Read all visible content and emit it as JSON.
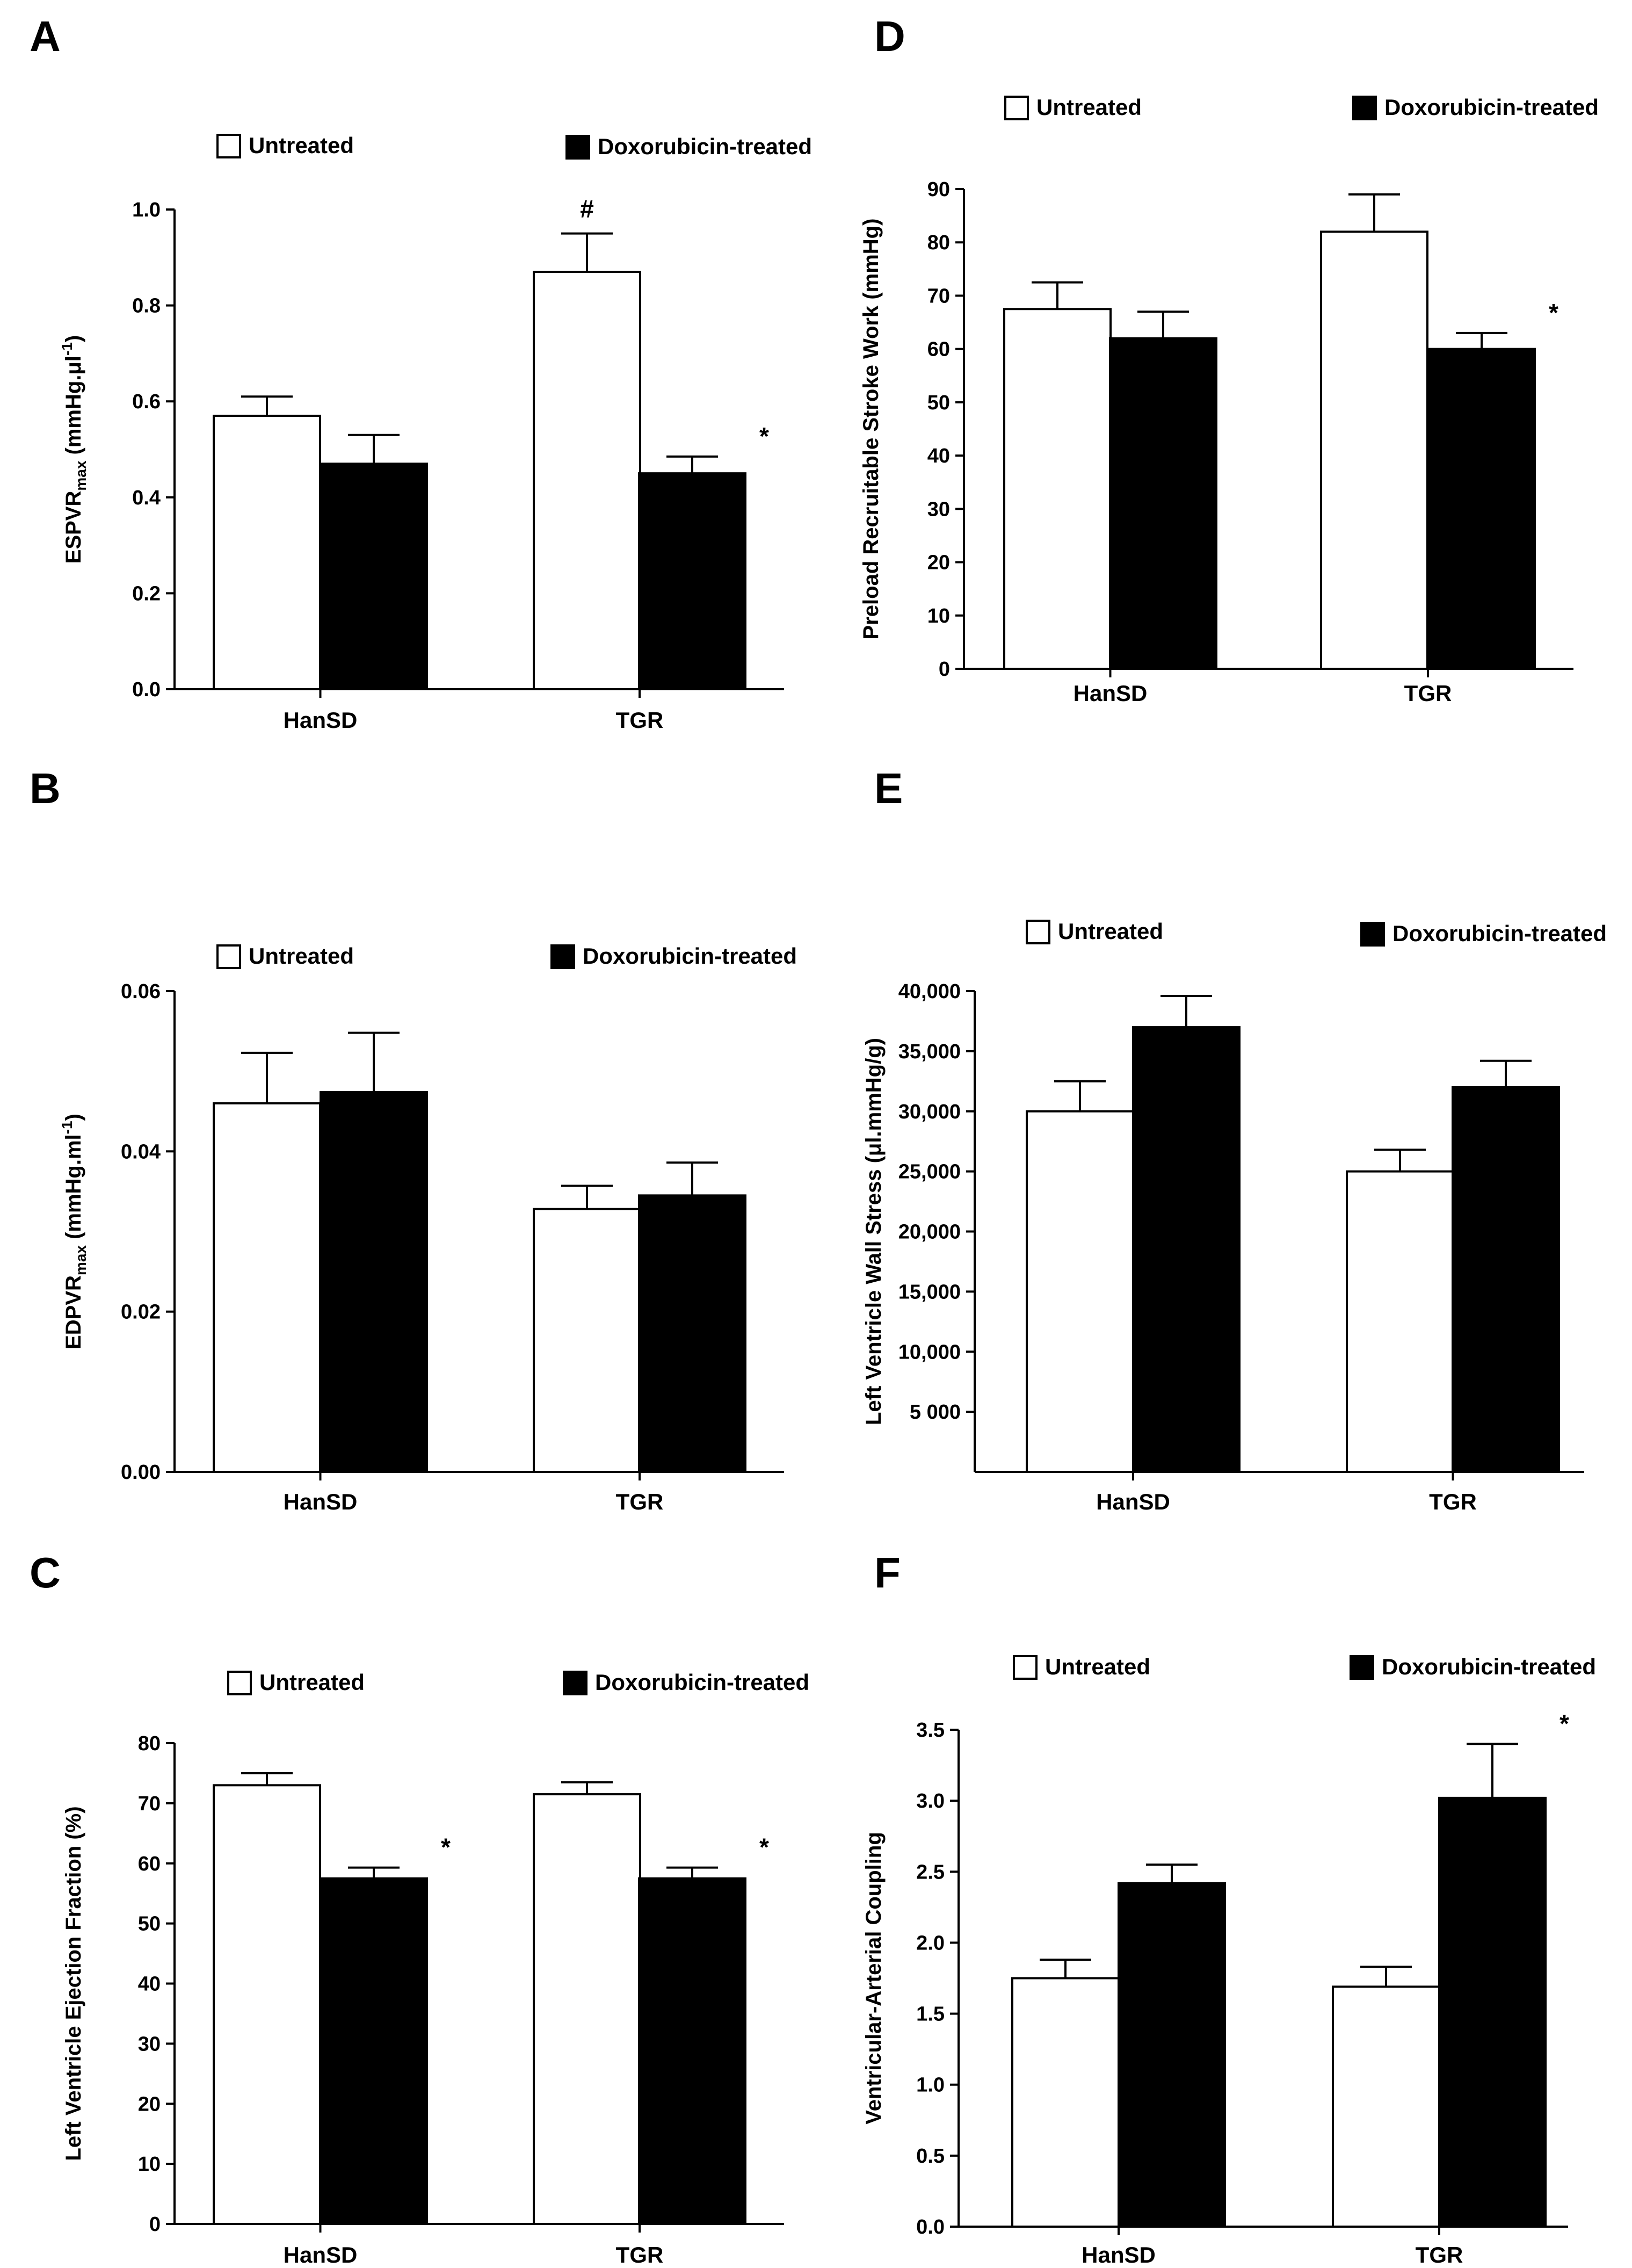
{
  "legend": {
    "untreated": "Untreated",
    "treated": "Doxorubicin-treated"
  },
  "colors": {
    "untreated": "#ffffff",
    "treated": "#000000",
    "stroke": "#000000"
  },
  "chart_data": [
    {
      "panel": "A",
      "type": "bar",
      "ylabel": "ESPVR",
      "ylabel_sub": "max",
      "ylabel_unit": " (mmHg.μl",
      "ylabel_sup": "-1",
      "ylabel_close": ")",
      "categories": [
        "HanSD",
        "TGR"
      ],
      "ylim": [
        0,
        1.0
      ],
      "yticks": [
        0.0,
        0.2,
        0.4,
        0.6,
        0.8,
        1.0
      ],
      "ytick_labels": [
        "0.0",
        "0.2",
        "0.4",
        "0.6",
        "0.8",
        "1.0"
      ],
      "series": [
        {
          "name": "Untreated",
          "values": [
            0.57,
            0.87
          ],
          "errors": [
            0.04,
            0.08
          ],
          "marks": [
            "",
            "#"
          ]
        },
        {
          "name": "Doxorubicin-treated",
          "values": [
            0.47,
            0.45
          ],
          "errors": [
            0.06,
            0.035
          ],
          "marks": [
            "",
            "*"
          ]
        }
      ]
    },
    {
      "panel": "B",
      "type": "bar",
      "ylabel": "EDPVR",
      "ylabel_sub": "max",
      "ylabel_unit": " (mmHg.ml",
      "ylabel_sup": "-1",
      "ylabel_close": ")",
      "categories": [
        "HanSD",
        "TGR"
      ],
      "ylim": [
        0,
        0.06
      ],
      "yticks": [
        0.0,
        0.02,
        0.04,
        0.06
      ],
      "ytick_labels": [
        "0.00",
        "0.02",
        "0.04",
        "0.06"
      ],
      "series": [
        {
          "name": "Untreated",
          "values": [
            0.046,
            0.0328
          ],
          "errors": [
            0.0063,
            0.0029
          ],
          "marks": [
            "",
            ""
          ]
        },
        {
          "name": "Doxorubicin-treated",
          "values": [
            0.0474,
            0.0345
          ],
          "errors": [
            0.0074,
            0.0041
          ],
          "marks": [
            "",
            ""
          ]
        }
      ]
    },
    {
      "panel": "C",
      "type": "bar",
      "ylabel": "Left Ventricle Ejection Fraction (%)",
      "categories": [
        "HanSD",
        "TGR"
      ],
      "ylim": [
        0,
        80
      ],
      "yticks": [
        0,
        10,
        20,
        30,
        40,
        50,
        60,
        70,
        80
      ],
      "ytick_labels": [
        "0",
        "10",
        "20",
        "30",
        "40",
        "50",
        "60",
        "70",
        "80"
      ],
      "series": [
        {
          "name": "Untreated",
          "values": [
            73,
            71.5
          ],
          "errors": [
            2,
            2
          ],
          "marks": [
            "",
            ""
          ]
        },
        {
          "name": "Doxorubicin-treated",
          "values": [
            57.5,
            57.5
          ],
          "errors": [
            1.8,
            1.8
          ],
          "marks": [
            "*",
            "*"
          ]
        }
      ]
    },
    {
      "panel": "D",
      "type": "bar",
      "ylabel": "Preload Recruitable Stroke Work (mmHg)",
      "categories": [
        "HanSD",
        "TGR"
      ],
      "ylim": [
        0,
        90
      ],
      "yticks": [
        0,
        10,
        20,
        30,
        40,
        50,
        60,
        70,
        80,
        90
      ],
      "ytick_labels": [
        "0",
        "10",
        "20",
        "30",
        "40",
        "50",
        "60",
        "70",
        "80",
        "90"
      ],
      "series": [
        {
          "name": "Untreated",
          "values": [
            67.5,
            82
          ],
          "errors": [
            5,
            7
          ],
          "marks": [
            "",
            ""
          ]
        },
        {
          "name": "Doxorubicin-treated",
          "values": [
            62,
            60
          ],
          "errors": [
            5,
            3
          ],
          "marks": [
            "",
            "*"
          ]
        }
      ]
    },
    {
      "panel": "E",
      "type": "bar",
      "ylabel": "Left Ventricle Wall Stress (μl.mmHg/g)",
      "categories": [
        "HanSD",
        "TGR"
      ],
      "ylim": [
        0,
        40000
      ],
      "yticks": [
        5000,
        10000,
        15000,
        20000,
        25000,
        30000,
        35000,
        40000
      ],
      "ytick_labels": [
        "5 000",
        "10,000",
        "15,000",
        "20,000",
        "25,000",
        "30,000",
        "35,000",
        "40,000"
      ],
      "series": [
        {
          "name": "Untreated",
          "values": [
            30000,
            25000
          ],
          "errors": [
            2500,
            1800
          ],
          "marks": [
            "",
            ""
          ]
        },
        {
          "name": "Doxorubicin-treated",
          "values": [
            37000,
            32000
          ],
          "errors": [
            2600,
            2200
          ],
          "marks": [
            "",
            ""
          ]
        }
      ]
    },
    {
      "panel": "F",
      "type": "bar",
      "ylabel": "Ventricular-Arterial Coupling",
      "categories": [
        "HanSD",
        "TGR"
      ],
      "ylim": [
        0,
        3.5
      ],
      "yticks": [
        0,
        0.5,
        1.0,
        1.5,
        2.0,
        2.5,
        3.0,
        3.5
      ],
      "ytick_labels": [
        "0.0",
        "0.5",
        "1.0",
        "1.5",
        "2.0",
        "2.5",
        "3.0",
        "3.5"
      ],
      "series": [
        {
          "name": "Untreated",
          "values": [
            1.75,
            1.69
          ],
          "errors": [
            0.13,
            0.14
          ],
          "marks": [
            "",
            ""
          ]
        },
        {
          "name": "Doxorubicin-treated",
          "values": [
            2.42,
            3.02
          ],
          "errors": [
            0.13,
            0.38
          ],
          "marks": [
            "",
            "*"
          ]
        }
      ]
    }
  ]
}
